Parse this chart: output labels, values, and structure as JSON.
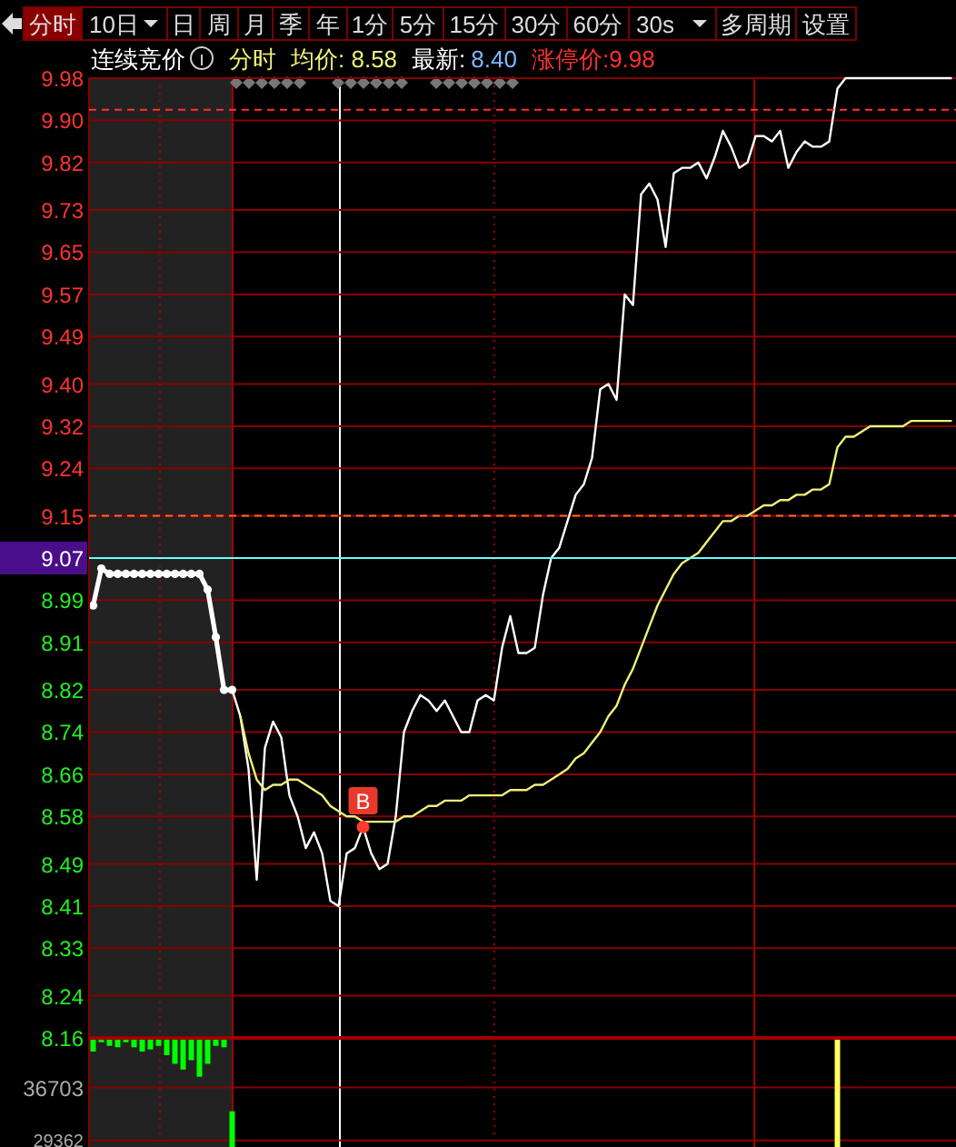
{
  "chart_data": [
    {
      "type": "other",
      "annotations": [
        "分时",
        "10日",
        "日",
        "周",
        "月",
        "季",
        "年",
        "1分",
        "5分",
        "15分",
        "30分",
        "60分",
        "30s",
        "多周期",
        "设置"
      ]
    },
    {
      "type": "other",
      "annotations": [
        "连续竞价",
        "分时",
        "均价: 8.58",
        "最新:",
        "8.40",
        "涨停价:9.98"
      ]
    },
    {
      "type": "line",
      "ylim": [
        8.16,
        9.98
      ],
      "categories": [
        null,
        null,
        null,
        null,
        null,
        null,
        null,
        null,
        null,
        null,
        null,
        null,
        null,
        null,
        null,
        null,
        null,
        null,
        null,
        null,
        null,
        null,
        null,
        null,
        null,
        null,
        null,
        null,
        null,
        null,
        null,
        null,
        null,
        null,
        null,
        null,
        null,
        null,
        null,
        null,
        null,
        null,
        null,
        null,
        null,
        null,
        null,
        null,
        null,
        null,
        null,
        null,
        null,
        null,
        null,
        null,
        null,
        null,
        null,
        null,
        null,
        null,
        null,
        null,
        null,
        null,
        null,
        null,
        null,
        null,
        null,
        null,
        null,
        null,
        null,
        null,
        null,
        null,
        null,
        null,
        null,
        null,
        null,
        null,
        null,
        null,
        null,
        null,
        null,
        null,
        null,
        null,
        null,
        null,
        null,
        null,
        null,
        null,
        null,
        null,
        null,
        null,
        null,
        null,
        null,
        null
      ],
      "yticks": [
        9.98,
        {
          "value": 9.9,
          "label": "9.90"
        },
        9.82,
        9.73,
        9.65,
        9.57,
        9.49,
        {
          "value": 9.4,
          "label": "9.40"
        },
        9.32,
        9.24,
        9.15,
        9.07,
        8.99,
        8.91,
        8.82,
        8.74,
        8.66,
        8.58,
        8.49,
        8.41,
        8.33,
        8.24,
        8.16
      ],
      "tick_labels": "y",
      "grid": "y",
      "series": [
        {
          "color": "#ffffff",
          "marker": "circle",
          "values": [
            8.98,
            9.05,
            9.04,
            9.04,
            9.04,
            9.04,
            9.04,
            9.04,
            9.04,
            9.04,
            9.04,
            9.04,
            9.04,
            9.04,
            9.01,
            8.92,
            8.82,
            8.82,
            null,
            null,
            null,
            null,
            null,
            null,
            null,
            null,
            null,
            null,
            null,
            null,
            null,
            null,
            null,
            null,
            null,
            null,
            null,
            null,
            null,
            null,
            null,
            null,
            null,
            null,
            null,
            null,
            null,
            null,
            null,
            null,
            null,
            null,
            null,
            null,
            null,
            null,
            null,
            null,
            null,
            null,
            null,
            null,
            null,
            null,
            null,
            null,
            null,
            null,
            null,
            null,
            null,
            null,
            null,
            null,
            null,
            null,
            null,
            null,
            null,
            null,
            null,
            null,
            null,
            null,
            null,
            null,
            null,
            null,
            null,
            null,
            null,
            null,
            null,
            null,
            null,
            null,
            null,
            null,
            null,
            null,
            null,
            null,
            null,
            null,
            null,
            null
          ]
        },
        {
          "color": "#ffffff",
          "values": [
            null,
            null,
            null,
            null,
            null,
            null,
            null,
            null,
            null,
            null,
            null,
            null,
            null,
            null,
            null,
            null,
            null,
            8.82,
            8.77,
            8.67,
            8.46,
            8.71,
            8.76,
            8.73,
            8.62,
            8.58,
            8.52,
            8.55,
            8.51,
            8.42,
            8.41,
            8.51,
            8.52,
            8.56,
            8.51,
            8.48,
            8.49,
            8.58,
            8.74,
            8.78,
            8.81,
            8.8,
            8.78,
            8.8,
            8.77,
            8.74,
            8.74,
            8.8,
            8.81,
            8.8,
            8.9,
            8.96,
            8.89,
            8.89,
            8.9,
            9.0,
            9.07,
            9.09,
            9.14,
            9.19,
            9.21,
            9.26,
            9.39,
            9.4,
            9.37,
            9.57,
            9.55,
            9.76,
            9.78,
            9.75,
            9.66,
            9.8,
            9.81,
            9.81,
            9.82,
            9.79,
            9.83,
            9.88,
            9.85,
            9.81,
            9.82,
            9.87,
            9.87,
            9.86,
            9.88,
            9.81,
            9.84,
            9.86,
            9.85,
            9.85,
            9.86,
            9.96,
            9.98,
            9.98,
            9.98,
            9.98,
            9.98,
            9.98,
            9.98,
            9.98,
            9.98,
            9.98,
            9.98,
            9.98,
            9.98,
            9.98
          ]
        },
        {
          "color": "#f0f07a",
          "values": [
            null,
            null,
            null,
            null,
            null,
            null,
            null,
            null,
            null,
            null,
            null,
            null,
            null,
            null,
            null,
            null,
            null,
            null,
            8.77,
            8.7,
            8.65,
            8.63,
            8.64,
            8.64,
            8.65,
            8.65,
            8.64,
            8.63,
            8.62,
            8.6,
            8.59,
            8.58,
            8.58,
            8.57,
            8.57,
            8.57,
            8.57,
            8.57,
            8.58,
            8.58,
            8.59,
            8.6,
            8.6,
            8.61,
            8.61,
            8.61,
            8.62,
            8.62,
            8.62,
            8.62,
            8.62,
            8.63,
            8.63,
            8.63,
            8.64,
            8.64,
            8.65,
            8.66,
            8.67,
            8.69,
            8.7,
            8.72,
            8.74,
            8.77,
            8.79,
            8.83,
            8.86,
            8.9,
            8.94,
            8.98,
            9.01,
            9.04,
            9.06,
            9.07,
            9.08,
            9.1,
            9.12,
            9.14,
            9.14,
            9.15,
            9.15,
            9.16,
            9.17,
            9.17,
            9.18,
            9.18,
            9.19,
            9.19,
            9.2,
            9.2,
            9.21,
            9.28,
            9.3,
            9.3,
            9.31,
            9.32,
            9.32,
            9.32,
            9.32,
            9.32,
            9.33,
            9.33,
            9.33,
            9.33,
            9.33,
            9.33
          ]
        }
      ],
      "ref_lines": [
        {
          "axis": "y",
          "value": 9.07,
          "color": "#66ffff",
          "line_style": "solid"
        },
        {
          "axis": "y",
          "value": 9.92,
          "color": "#ff3333",
          "line_style": "dashed"
        },
        {
          "axis": "y",
          "value": 9.15,
          "color": "#ff6633",
          "line_style": "dashed"
        }
      ],
      "annotations": [
        {
          "text": "B",
          "y": 8.56
        }
      ]
    },
    {
      "type": "bar",
      "ylim": [
        28430,
        43610
      ],
      "categories": [
        null,
        null,
        null,
        null,
        null,
        null,
        null,
        null,
        null,
        null,
        null,
        null,
        null,
        null,
        null,
        null,
        null,
        null,
        null,
        null,
        null,
        null,
        null,
        null,
        null,
        null,
        null,
        null,
        null,
        null,
        null,
        null,
        null,
        null,
        null,
        null,
        null,
        null,
        null,
        null,
        null,
        null,
        null,
        null,
        null,
        null,
        null,
        null,
        null,
        null,
        null,
        null,
        null,
        null,
        null,
        null,
        null,
        null,
        null,
        null,
        null,
        null,
        null,
        null,
        null,
        null,
        null,
        null,
        null,
        null,
        null,
        null,
        null,
        null,
        null,
        null,
        null,
        null,
        null,
        null,
        null,
        null,
        null,
        null,
        null,
        null,
        null,
        null,
        null,
        null,
        null,
        null,
        null,
        null,
        null,
        null,
        null,
        null,
        null,
        null,
        null,
        null,
        null,
        null,
        null,
        null
      ],
      "yticks": [
        36703,
        29362
      ],
      "tick_labels": "y",
      "grid": "y",
      "series": [
        {
          "color": "#00ff00",
          "base": [
            43610,
            43610,
            43610,
            43610,
            43610,
            43610,
            43610,
            43610,
            43610,
            43610,
            43610,
            43610,
            43610,
            43610,
            43610,
            43610,
            43610,
            null,
            null,
            null,
            null,
            null,
            null,
            null,
            null,
            null,
            null,
            null,
            null,
            null,
            null,
            null,
            null,
            null,
            null,
            null,
            null,
            null,
            null,
            null,
            null,
            null,
            null,
            null,
            null,
            null,
            null,
            null,
            null,
            null,
            null,
            null,
            null,
            null,
            null,
            null,
            null,
            null,
            null,
            null,
            null,
            null,
            null,
            null,
            null,
            null,
            null,
            null,
            null,
            null,
            null,
            null,
            null,
            null,
            null,
            null,
            null,
            null,
            null,
            null,
            null,
            null,
            null,
            null,
            null,
            null,
            null,
            null,
            null,
            null,
            null,
            null,
            null,
            null,
            null,
            null,
            null,
            null,
            null,
            null,
            null,
            null,
            null,
            null,
            null,
            null
          ],
          "values": [
            -1900,
            -600,
            -1100,
            -1300,
            -600,
            -1300,
            -1900,
            -1600,
            -1100,
            -2400,
            -3600,
            -4400,
            -3100,
            -5400,
            -3600,
            -1100,
            -1300,
            null,
            null,
            null,
            null,
            null,
            null,
            null,
            null,
            null,
            null,
            null,
            null,
            null,
            null,
            null,
            null,
            null,
            null,
            null,
            null,
            null,
            null,
            null,
            null,
            null,
            null,
            null,
            null,
            null,
            null,
            null,
            null,
            null,
            null,
            null,
            null,
            null,
            null,
            null,
            null,
            null,
            null,
            null,
            null,
            null,
            null,
            null,
            null,
            null,
            null,
            null,
            null,
            null,
            null,
            null,
            null,
            null,
            null,
            null,
            null,
            null,
            null,
            null,
            null,
            null,
            null,
            null,
            null,
            null,
            null,
            null,
            null,
            null,
            null,
            null,
            null,
            null,
            null,
            null,
            null,
            null,
            null,
            null,
            null,
            null,
            null,
            null,
            null,
            null
          ]
        },
        {
          "colors": [
            null,
            null,
            null,
            null,
            null,
            null,
            null,
            null,
            null,
            null,
            null,
            null,
            null,
            null,
            null,
            null,
            null,
            "#00ff00",
            null,
            null,
            null,
            null,
            null,
            null,
            null,
            null,
            null,
            null,
            null,
            null,
            null,
            null,
            null,
            null,
            null,
            null,
            null,
            null,
            null,
            null,
            null,
            null,
            null,
            null,
            null,
            null,
            null,
            null,
            null,
            null,
            null,
            null,
            null,
            null,
            null,
            null,
            null,
            null,
            null,
            null,
            null,
            null,
            null,
            null,
            null,
            null,
            null,
            null,
            null,
            null,
            null,
            null,
            null,
            null,
            null,
            null,
            null,
            null,
            null,
            null,
            null,
            null,
            null,
            null,
            null,
            null,
            null,
            null,
            null,
            null,
            null,
            "#ffff66",
            null,
            null,
            null,
            null,
            null,
            null,
            null,
            null,
            null,
            null,
            null,
            null,
            null,
            null
          ],
          "values": [
            null,
            null,
            null,
            null,
            null,
            null,
            null,
            null,
            null,
            null,
            null,
            null,
            null,
            null,
            null,
            null,
            null,
            33400,
            null,
            null,
            null,
            null,
            null,
            null,
            null,
            null,
            null,
            null,
            null,
            null,
            null,
            null,
            null,
            null,
            null,
            null,
            null,
            null,
            null,
            null,
            null,
            null,
            null,
            null,
            null,
            null,
            null,
            null,
            null,
            null,
            null,
            null,
            null,
            null,
            null,
            null,
            null,
            null,
            null,
            null,
            null,
            null,
            null,
            null,
            null,
            null,
            null,
            null,
            null,
            null,
            null,
            null,
            null,
            null,
            null,
            null,
            null,
            null,
            null,
            null,
            null,
            null,
            null,
            null,
            null,
            null,
            null,
            null,
            null,
            null,
            null,
            43610,
            null,
            null,
            null,
            null,
            null,
            null,
            null,
            null,
            null,
            null,
            null,
            null,
            null,
            null
          ]
        }
      ]
    }
  ]
}
